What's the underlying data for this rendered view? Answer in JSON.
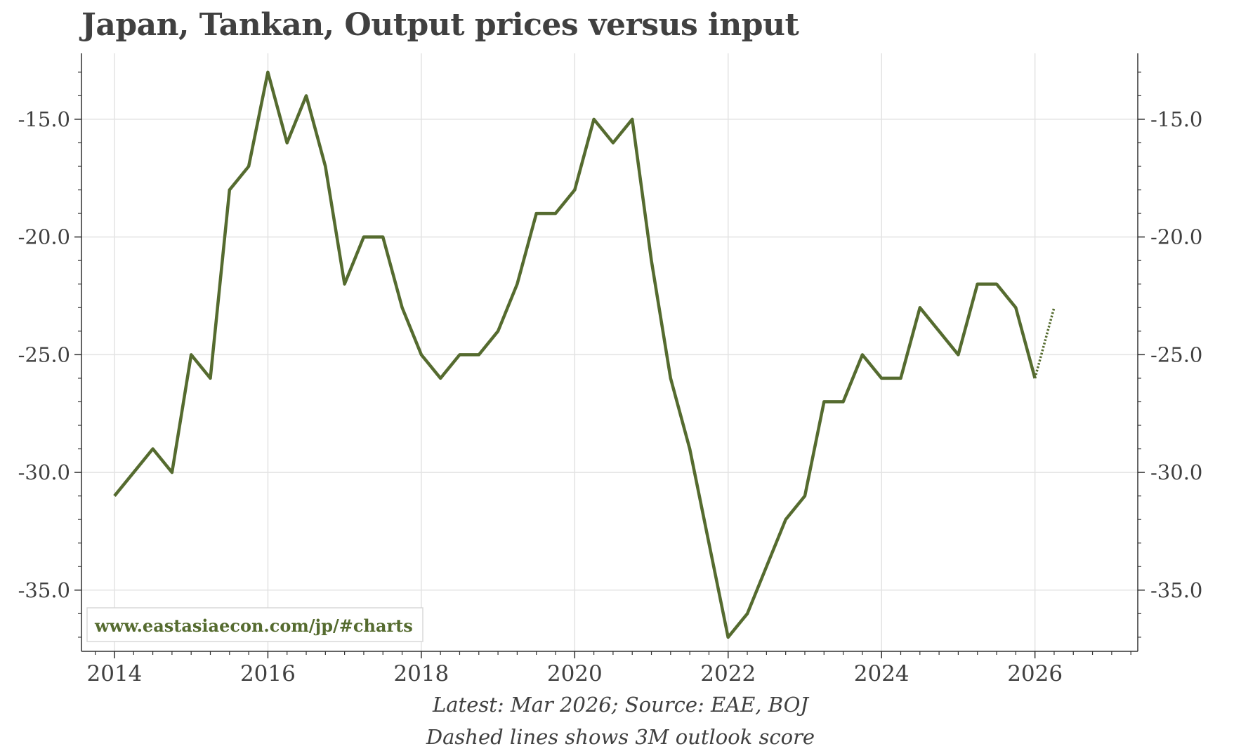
{
  "chart_data": {
    "type": "line",
    "title": "Japan, Tankan, Output prices versus input",
    "xlabel": "",
    "ylabel": "",
    "xlim": [
      2013.57,
      2027.34
    ],
    "ylim": [
      -37.6,
      -12.2
    ],
    "x_ticks": [
      2014,
      2016,
      2018,
      2020,
      2022,
      2024,
      2026
    ],
    "x_tick_labels": [
      "2014",
      "2016",
      "2018",
      "2020",
      "2022",
      "2024",
      "2026"
    ],
    "y_ticks": [
      -15.0,
      -20.0,
      -25.0,
      -30.0,
      -35.0
    ],
    "y_tick_labels": [
      "-15.0",
      "-20.0",
      "-25.0",
      "-30.0",
      "-35.0"
    ],
    "grid": true,
    "line_color": "#556b2f",
    "series": [
      {
        "name": "Output prices versus input",
        "style": "solid",
        "x": [
          2014.0,
          2014.25,
          2014.5,
          2014.75,
          2015.0,
          2015.25,
          2015.5,
          2015.75,
          2016.0,
          2016.25,
          2016.5,
          2016.75,
          2017.0,
          2017.25,
          2017.5,
          2017.75,
          2018.0,
          2018.25,
          2018.5,
          2018.75,
          2019.0,
          2019.25,
          2019.5,
          2019.75,
          2020.0,
          2020.25,
          2020.5,
          2020.75,
          2021.0,
          2021.25,
          2021.5,
          2021.75,
          2022.0,
          2022.25,
          2022.5,
          2022.75,
          2023.0,
          2023.25,
          2023.5,
          2023.75,
          2024.0,
          2024.25,
          2024.5,
          2024.75,
          2025.0,
          2025.25,
          2025.5,
          2025.75,
          2026.0
        ],
        "values": [
          -31,
          -30,
          -29,
          -30,
          -25,
          -26,
          -18,
          -17,
          -13,
          -16,
          -14,
          -17,
          -22,
          -20,
          -20,
          -23,
          -25,
          -26,
          -25,
          -25,
          -24,
          -22,
          -19,
          -19,
          -18,
          -15,
          -16,
          -15,
          -21,
          -26,
          -29,
          -33,
          -37,
          -36,
          -34,
          -32,
          -31,
          -27,
          -27,
          -25,
          -26,
          -26,
          -23,
          -24,
          -25,
          -22,
          -22,
          -23,
          -26
        ]
      },
      {
        "name": "3M outlook score",
        "style": "dotted",
        "x": [
          2026.0,
          2026.25
        ],
        "values": [
          -26,
          -23
        ]
      }
    ],
    "watermark": "www.eastasiaecon.com/jp/#charts",
    "notes": [
      "Latest: Mar 2026; Source: EAE, BOJ",
      "Dashed lines shows 3M outlook score"
    ]
  }
}
